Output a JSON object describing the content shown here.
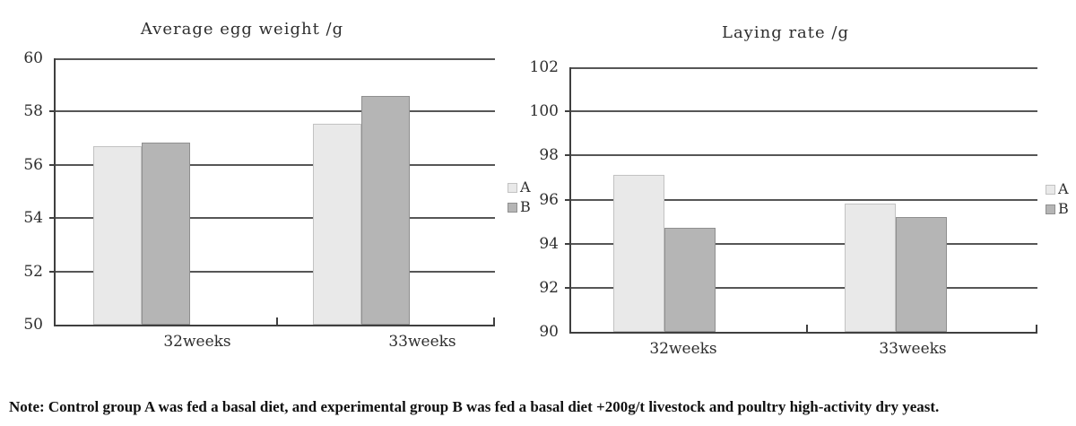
{
  "note": "Note: Control group A was fed a basal diet, and experimental group B was fed a basal diet +200g/t livestock and poultry high-activity dry yeast.",
  "colors": {
    "series_a_fill": "#e9e9e9",
    "series_a_border": "#c2c2c2",
    "series_b_fill": "#b5b5b5",
    "series_b_border": "#8f8f8f",
    "gridline": "#565656",
    "axis": "#3f3f3f",
    "text": "#2e2e2e"
  },
  "chart_data": [
    {
      "type": "bar",
      "title": "Average egg weight /g",
      "categories": [
        "32weeks",
        "33weeks"
      ],
      "series": [
        {
          "name": "A",
          "values": [
            56.7,
            57.55
          ]
        },
        {
          "name": "B",
          "values": [
            56.85,
            58.6
          ]
        }
      ],
      "xlabel": "",
      "ylabel": "",
      "ylim": [
        50,
        60
      ],
      "yticks": [
        60,
        58,
        56,
        54,
        52,
        50
      ],
      "grid": true,
      "legend_position": "right"
    },
    {
      "type": "bar",
      "title": "Laying rate /g",
      "categories": [
        "32weeks",
        "33weeks"
      ],
      "series": [
        {
          "name": "A",
          "values": [
            97.1,
            95.8
          ]
        },
        {
          "name": "B",
          "values": [
            94.7,
            95.2
          ]
        }
      ],
      "xlabel": "",
      "ylabel": "",
      "ylim": [
        90,
        102
      ],
      "yticks": [
        102,
        100,
        98,
        96,
        94,
        92,
        90
      ],
      "grid": true,
      "legend_position": "right"
    }
  ]
}
